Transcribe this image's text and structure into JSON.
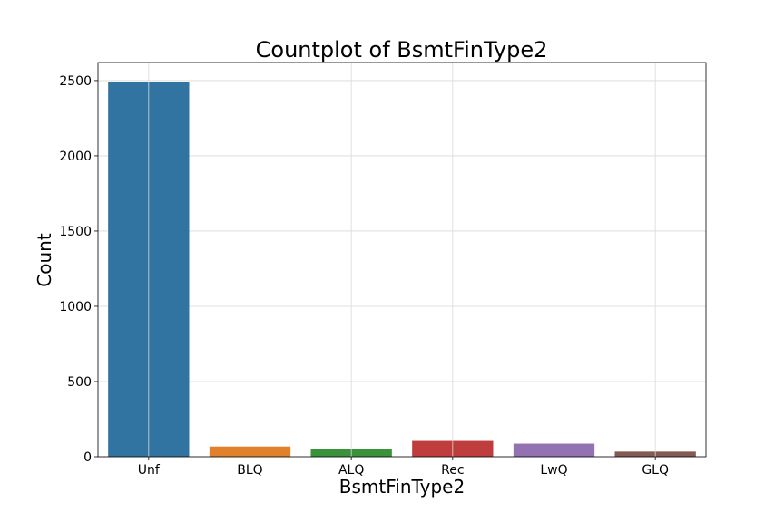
{
  "chart_data": {
    "type": "bar",
    "title": "Countplot of BsmtFinType2",
    "xlabel": "BsmtFinType2",
    "ylabel": "Count",
    "categories": [
      "Unf",
      "BLQ",
      "ALQ",
      "Rec",
      "LwQ",
      "GLQ"
    ],
    "values": [
      2493,
      68,
      52,
      105,
      87,
      34
    ],
    "colors": [
      "#3274a1",
      "#e1812c",
      "#3a923a",
      "#c03d3e",
      "#9372b2",
      "#845b53"
    ],
    "ylim": [
      0,
      2620
    ],
    "yticks": [
      0,
      500,
      1000,
      1500,
      2000,
      2500
    ],
    "grid": true,
    "legend": "none"
  }
}
